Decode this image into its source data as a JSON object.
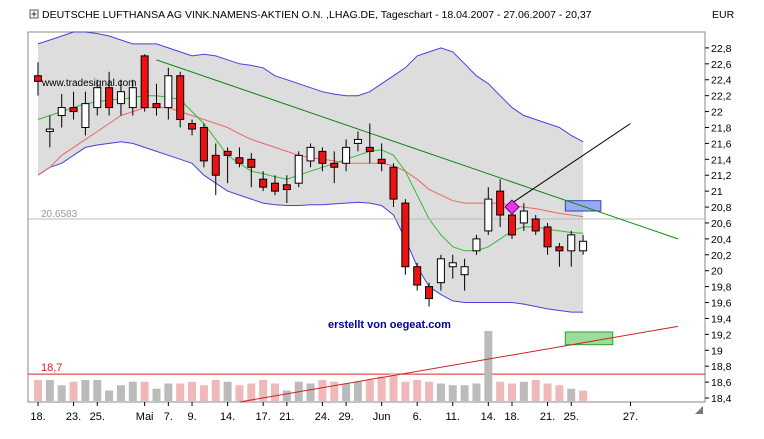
{
  "header": {
    "title": "DEUTSCHE LUFTHANSA AG VINK.NAMENS-AKTIEN O.N. ,LHAG.DE, Tageschart - 18.04.2007 - 27.06.2007 - 20,37",
    "currency": "EUR"
  },
  "watermark": "www.tradesignal.com",
  "credit": "erstellt von oegeat.com",
  "colors": {
    "bull": "#ffffff",
    "bear": "#ee1111",
    "band_fill": "#dddddd",
    "band_line": "#4444dd",
    "ma_fast": "#33bb33",
    "ma_slow": "#ee6666",
    "trend_down": "#118811",
    "trend_up": "#cc2222",
    "volume_bar": "#bbbbbb",
    "volume_bar_red": "#f0b8b8",
    "marker": "#ee33ee"
  },
  "chart_data": {
    "type": "candlestick",
    "title": "DEUTSCHE LUFTHANSA AG VINK.NAMENS-AKTIEN O.N. ,LHAG.DE, Tageschart - 18.04.2007 - 27.06.2007 - 20,37",
    "ylabel": "EUR",
    "ylim": [
      18.35,
      23.0
    ],
    "y_ticks": [
      "22,8",
      "22,6",
      "22,4",
      "22,2",
      "22",
      "21,8",
      "21,6",
      "21,4",
      "21,2",
      "21",
      "20,8",
      "20,6",
      "20,4",
      "20,2",
      "20",
      "19,8",
      "19,6",
      "19,4",
      "19,2",
      "19",
      "18,8",
      "18,6",
      "18,4"
    ],
    "y_tick_values": [
      22.8,
      22.6,
      22.4,
      22.2,
      22.0,
      21.8,
      21.6,
      21.4,
      21.2,
      21.0,
      20.8,
      20.6,
      20.4,
      20.2,
      20.0,
      19.8,
      19.6,
      19.4,
      19.2,
      19.0,
      18.8,
      18.6,
      18.4
    ],
    "x_ticks": [
      {
        "label": "18.",
        "index": 0
      },
      {
        "label": "23.",
        "index": 3
      },
      {
        "label": "25.",
        "index": 5
      },
      {
        "label": "Mai",
        "index": 9
      },
      {
        "label": "7.",
        "index": 11
      },
      {
        "label": "9.",
        "index": 13
      },
      {
        "label": "14.",
        "index": 16
      },
      {
        "label": "17.",
        "index": 19
      },
      {
        "label": "21.",
        "index": 21
      },
      {
        "label": "24.",
        "index": 24
      },
      {
        "label": "29.",
        "index": 26
      },
      {
        "label": "Jun",
        "index": 29
      },
      {
        "label": "6.",
        "index": 32
      },
      {
        "label": "11.",
        "index": 35
      },
      {
        "label": "14.",
        "index": 38
      },
      {
        "label": "18.",
        "index": 40
      },
      {
        "label": "21.",
        "index": 43
      },
      {
        "label": "25.",
        "index": 45
      },
      {
        "label": "27.",
        "index": 50
      }
    ],
    "candles": [
      {
        "o": 22.45,
        "h": 22.62,
        "l": 22.2,
        "c": 22.38
      },
      {
        "o": 21.75,
        "h": 21.95,
        "l": 21.55,
        "c": 21.78
      },
      {
        "o": 21.95,
        "h": 22.22,
        "l": 21.8,
        "c": 22.05
      },
      {
        "o": 22.05,
        "h": 22.25,
        "l": 21.9,
        "c": 22.0
      },
      {
        "o": 21.8,
        "h": 22.25,
        "l": 21.7,
        "c": 22.1
      },
      {
        "o": 22.05,
        "h": 22.4,
        "l": 21.95,
        "c": 22.3
      },
      {
        "o": 22.3,
        "h": 22.5,
        "l": 21.95,
        "c": 22.05
      },
      {
        "o": 22.1,
        "h": 22.4,
        "l": 21.95,
        "c": 22.25
      },
      {
        "o": 22.05,
        "h": 22.4,
        "l": 21.95,
        "c": 22.3
      },
      {
        "o": 22.7,
        "h": 22.72,
        "l": 22.0,
        "c": 22.05
      },
      {
        "o": 22.1,
        "h": 22.35,
        "l": 21.95,
        "c": 22.05
      },
      {
        "o": 22.05,
        "h": 22.55,
        "l": 21.9,
        "c": 22.45
      },
      {
        "o": 22.45,
        "h": 22.5,
        "l": 21.8,
        "c": 21.9
      },
      {
        "o": 21.85,
        "h": 21.9,
        "l": 21.7,
        "c": 21.78
      },
      {
        "o": 21.8,
        "h": 21.85,
        "l": 21.3,
        "c": 21.38
      },
      {
        "o": 21.45,
        "h": 21.6,
        "l": 20.95,
        "c": 21.2
      },
      {
        "o": 21.5,
        "h": 21.55,
        "l": 21.1,
        "c": 21.45
      },
      {
        "o": 21.42,
        "h": 21.55,
        "l": 21.3,
        "c": 21.35
      },
      {
        "o": 21.4,
        "h": 21.48,
        "l": 21.05,
        "c": 21.3
      },
      {
        "o": 21.15,
        "h": 21.25,
        "l": 21.0,
        "c": 21.05
      },
      {
        "o": 21.1,
        "h": 21.2,
        "l": 20.95,
        "c": 21.0
      },
      {
        "o": 21.08,
        "h": 21.2,
        "l": 20.85,
        "c": 21.02
      },
      {
        "o": 21.1,
        "h": 21.5,
        "l": 21.05,
        "c": 21.45
      },
      {
        "o": 21.38,
        "h": 21.6,
        "l": 21.3,
        "c": 21.55
      },
      {
        "o": 21.5,
        "h": 21.55,
        "l": 21.25,
        "c": 21.35
      },
      {
        "o": 21.35,
        "h": 21.5,
        "l": 21.1,
        "c": 21.3
      },
      {
        "o": 21.35,
        "h": 21.65,
        "l": 21.25,
        "c": 21.55
      },
      {
        "o": 21.6,
        "h": 21.75,
        "l": 21.5,
        "c": 21.65
      },
      {
        "o": 21.55,
        "h": 21.85,
        "l": 21.35,
        "c": 21.5
      },
      {
        "o": 21.4,
        "h": 21.6,
        "l": 21.25,
        "c": 21.35
      },
      {
        "o": 21.3,
        "h": 21.35,
        "l": 20.8,
        "c": 20.9
      },
      {
        "o": 20.85,
        "h": 20.9,
        "l": 19.95,
        "c": 20.05
      },
      {
        "o": 20.05,
        "h": 20.1,
        "l": 19.75,
        "c": 19.82
      },
      {
        "o": 19.8,
        "h": 19.85,
        "l": 19.55,
        "c": 19.65
      },
      {
        "o": 19.85,
        "h": 20.2,
        "l": 19.75,
        "c": 20.15
      },
      {
        "o": 20.05,
        "h": 20.2,
        "l": 19.9,
        "c": 20.1
      },
      {
        "o": 19.95,
        "h": 20.15,
        "l": 19.75,
        "c": 20.05
      },
      {
        "o": 20.25,
        "h": 20.45,
        "l": 20.2,
        "c": 20.4
      },
      {
        "o": 20.5,
        "h": 21.05,
        "l": 20.45,
        "c": 20.9
      },
      {
        "o": 21.0,
        "h": 21.15,
        "l": 20.55,
        "c": 20.7
      },
      {
        "o": 20.7,
        "h": 20.78,
        "l": 20.4,
        "c": 20.45
      },
      {
        "o": 20.6,
        "h": 20.85,
        "l": 20.5,
        "c": 20.75
      },
      {
        "o": 20.65,
        "h": 20.7,
        "l": 20.45,
        "c": 20.5
      },
      {
        "o": 20.55,
        "h": 20.6,
        "l": 20.2,
        "c": 20.3
      },
      {
        "o": 20.3,
        "h": 20.35,
        "l": 20.05,
        "c": 20.25
      },
      {
        "o": 20.25,
        "h": 20.5,
        "l": 20.05,
        "c": 20.45
      },
      {
        "o": 20.25,
        "h": 20.45,
        "l": 20.2,
        "c": 20.37
      }
    ],
    "bollinger_upper": [
      22.85,
      22.9,
      22.95,
      23.0,
      23.0,
      22.98,
      22.95,
      22.9,
      22.85,
      22.85,
      22.85,
      22.8,
      22.75,
      22.7,
      22.72,
      22.7,
      22.65,
      22.6,
      22.58,
      22.55,
      22.45,
      22.4,
      22.35,
      22.3,
      22.25,
      22.22,
      22.2,
      22.2,
      22.25,
      22.35,
      22.45,
      22.55,
      22.7,
      22.75,
      22.8,
      22.75,
      22.6,
      22.45,
      22.35,
      22.2,
      22.05,
      21.95,
      21.9,
      21.85,
      21.8,
      21.7,
      21.62
    ],
    "bollinger_lower": [
      21.2,
      21.3,
      21.35,
      21.45,
      21.55,
      21.58,
      21.6,
      21.62,
      21.6,
      21.55,
      21.5,
      21.45,
      21.4,
      21.35,
      21.2,
      21.1,
      21.0,
      20.95,
      20.9,
      20.85,
      20.83,
      20.82,
      20.82,
      20.83,
      20.83,
      20.84,
      20.85,
      20.86,
      20.85,
      20.82,
      20.7,
      20.4,
      20.05,
      19.8,
      19.7,
      19.62,
      19.6,
      19.6,
      19.6,
      19.6,
      19.6,
      19.58,
      19.55,
      19.52,
      19.5,
      19.48,
      19.48
    ],
    "ma_fast": [
      21.9,
      21.95,
      22.0,
      22.05,
      22.1,
      22.12,
      22.15,
      22.15,
      22.18,
      22.2,
      22.2,
      22.18,
      22.15,
      22.0,
      21.85,
      21.65,
      21.45,
      21.35,
      21.25,
      21.22,
      21.18,
      21.15,
      21.2,
      21.25,
      21.3,
      21.35,
      21.4,
      21.45,
      21.5,
      21.52,
      21.45,
      21.25,
      20.95,
      20.65,
      20.45,
      20.3,
      20.25,
      20.25,
      20.3,
      20.4,
      20.5,
      20.55,
      20.55,
      20.52,
      20.5,
      20.48,
      20.47
    ],
    "ma_slow": [
      21.2,
      21.3,
      21.45,
      21.55,
      21.65,
      21.75,
      21.85,
      21.95,
      22.0,
      22.05,
      22.05,
      22.05,
      22.0,
      21.95,
      21.9,
      21.85,
      21.8,
      21.72,
      21.65,
      21.6,
      21.55,
      21.5,
      21.45,
      21.42,
      21.4,
      21.38,
      21.35,
      21.35,
      21.35,
      21.35,
      21.32,
      21.25,
      21.15,
      21.02,
      20.95,
      20.88,
      20.85,
      20.85,
      20.85,
      20.85,
      20.82,
      20.8,
      20.78,
      20.75,
      20.72,
      20.7,
      20.68
    ],
    "reference_price": {
      "value": 20.65,
      "label": "20.6583"
    },
    "support_level": {
      "value": 18.7,
      "label": "18,7"
    },
    "volume_relative": [
      0.6,
      0.6,
      0.45,
      0.55,
      0.6,
      0.6,
      0.3,
      0.45,
      0.55,
      0.55,
      0.35,
      0.5,
      0.5,
      0.55,
      0.45,
      0.6,
      0.55,
      0.45,
      0.5,
      0.6,
      0.5,
      0.3,
      0.55,
      0.5,
      0.6,
      0.55,
      0.5,
      0.55,
      0.6,
      0.7,
      0.8,
      0.55,
      0.6,
      0.55,
      0.5,
      0.45,
      0.45,
      0.5,
      2.0,
      0.55,
      0.5,
      0.55,
      0.6,
      0.5,
      0.45,
      0.35,
      0.3
    ],
    "volume_red": [
      true,
      false,
      false,
      true,
      false,
      false,
      false,
      false,
      false,
      true,
      false,
      false,
      true,
      true,
      true,
      true,
      false,
      true,
      true,
      true,
      true,
      false,
      false,
      false,
      true,
      true,
      false,
      false,
      true,
      true,
      true,
      true,
      true,
      true,
      false,
      false,
      false,
      false,
      false,
      true,
      true,
      false,
      true,
      true,
      true,
      false,
      true
    ],
    "trendlines": [
      {
        "name": "downtrend",
        "from": {
          "index": 10,
          "value": 22.65
        },
        "to": {
          "index": 54,
          "value": 20.4
        }
      },
      {
        "name": "uptrend",
        "from": {
          "index": 17,
          "value": 18.35
        },
        "to": {
          "index": 54,
          "value": 19.3
        }
      },
      {
        "name": "pointer",
        "from": {
          "index": 40,
          "value": 20.85
        },
        "to": {
          "index": 50,
          "value": 21.85
        }
      }
    ],
    "zones": [
      {
        "name": "target-zone-upper",
        "x_from": 44.5,
        "x_to": 47.5,
        "y_from": 20.75,
        "y_to": 20.88
      },
      {
        "name": "target-zone-lower",
        "x_from": 44.5,
        "x_to": 48.5,
        "y_from": 19.07,
        "y_to": 19.23
      }
    ],
    "marker": {
      "index": 40,
      "value": 20.8
    }
  }
}
